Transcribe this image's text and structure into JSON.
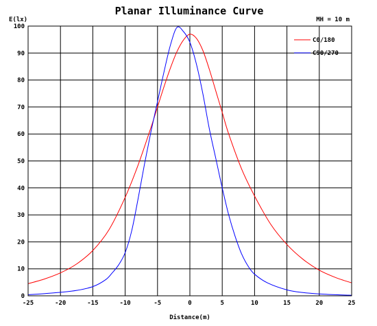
{
  "chart_data": {
    "type": "line",
    "title": "Planar Illuminance Curve",
    "ylabel": "E(lx)",
    "xlabel": "Distance(m)",
    "note": "MH = 10 m",
    "xlim": [
      -25,
      25
    ],
    "ylim": [
      0,
      100
    ],
    "xticks": [
      -25,
      -20,
      -15,
      -10,
      -5,
      0,
      5,
      10,
      15,
      20,
      25
    ],
    "yticks": [
      0,
      10,
      20,
      30,
      40,
      50,
      60,
      70,
      80,
      90,
      100
    ],
    "grid": true,
    "legend_position": "top-right",
    "series": [
      {
        "name": "C0/180",
        "color": "#ff0000",
        "x": [
          -25,
          -22.5,
          -20,
          -17.5,
          -15,
          -12.5,
          -10,
          -8,
          -6,
          -5,
          -4,
          -3,
          -2,
          -1,
          0,
          1,
          2,
          3,
          4,
          5,
          6,
          8,
          10,
          12.5,
          15,
          17.5,
          20,
          22.5,
          25
        ],
        "y": [
          4.5,
          6.2,
          8.5,
          11.8,
          16.8,
          24.5,
          36.5,
          48.5,
          62.5,
          70.0,
          77.5,
          84.5,
          90.5,
          94.8,
          97.0,
          95.5,
          91.0,
          84.0,
          76.0,
          68.0,
          60.0,
          47.0,
          37.0,
          26.5,
          19.0,
          13.5,
          9.5,
          6.8,
          4.8
        ]
      },
      {
        "name": "C90/270",
        "color": "#0000ff",
        "x": [
          -25,
          -22.5,
          -20,
          -17.5,
          -15,
          -13,
          -12,
          -11,
          -10,
          -9,
          -8,
          -7,
          -6,
          -5,
          -4,
          -3,
          -2,
          -1,
          0,
          1,
          2,
          3,
          4,
          5,
          6,
          7,
          8,
          9,
          10,
          12,
          15,
          17.5,
          20,
          22.5,
          25
        ],
        "y": [
          0.4,
          0.8,
          1.3,
          2.0,
          3.4,
          6.0,
          8.5,
          11.5,
          16.0,
          24.0,
          36.0,
          49.0,
          61.0,
          72.0,
          83.0,
          93.0,
          99.5,
          98.0,
          94.0,
          86.0,
          75.0,
          62.0,
          51.0,
          40.0,
          30.0,
          22.0,
          15.5,
          11.0,
          8.0,
          4.8,
          2.2,
          1.2,
          0.7,
          0.4,
          0.2
        ]
      }
    ]
  }
}
